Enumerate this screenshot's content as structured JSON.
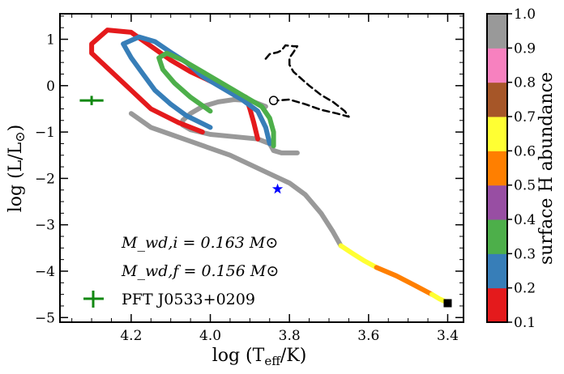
{
  "chart_data": {
    "type": "scatter",
    "xlabel_main": "log (T",
    "xlabel_sub": "eff",
    "xlabel_end": "/K)",
    "ylabel_main": "log (L/L",
    "ylabel_sun": "⊙",
    "ylabel_end": ")",
    "xlim": [
      4.38,
      3.36
    ],
    "ylim": [
      -5.1,
      1.55
    ],
    "xticks": [
      4.2,
      4.0,
      3.8,
      3.6,
      3.4
    ],
    "yticks": [
      1,
      0,
      -1,
      -2,
      -3,
      -4,
      -5
    ],
    "colorbar": {
      "label": "surface H abundance",
      "ticks": [
        0.1,
        0.2,
        0.3,
        0.4,
        0.5,
        0.6,
        0.7,
        0.8,
        0.9,
        1.0
      ],
      "bins": [
        {
          "from": 0.1,
          "to": 0.2,
          "color": "#e41a1c"
        },
        {
          "from": 0.2,
          "to": 0.3,
          "color": "#377eb8"
        },
        {
          "from": 0.3,
          "to": 0.4,
          "color": "#4daf4a"
        },
        {
          "from": 0.4,
          "to": 0.5,
          "color": "#984ea3"
        },
        {
          "from": 0.5,
          "to": 0.6,
          "color": "#ff7f00"
        },
        {
          "from": 0.6,
          "to": 0.7,
          "color": "#ffff33"
        },
        {
          "from": 0.7,
          "to": 0.8,
          "color": "#a65628"
        },
        {
          "from": 0.8,
          "to": 0.9,
          "color": "#f781bf"
        },
        {
          "from": 0.9,
          "to": 1.0,
          "color": "#999999"
        }
      ]
    },
    "annotations": {
      "mass_initial": "M_wd,i = 0.163 M⊙",
      "mass_final": "M_wd,f = 0.156 M⊙",
      "legend_label": "PFT J0533+0209"
    },
    "series": [
      {
        "name": "pre-WD track (dashed)",
        "style": "dashed",
        "color": "#000000",
        "points": [
          [
            3.86,
            0.58
          ],
          [
            3.85,
            0.68
          ],
          [
            3.83,
            0.72
          ],
          [
            3.82,
            0.76
          ],
          [
            3.81,
            0.87
          ],
          [
            3.79,
            0.85
          ],
          [
            3.78,
            0.85
          ],
          [
            3.79,
            0.72
          ],
          [
            3.8,
            0.6
          ],
          [
            3.8,
            0.45
          ],
          [
            3.79,
            0.3
          ],
          [
            3.77,
            0.15
          ],
          [
            3.75,
            0.0
          ],
          [
            3.72,
            -0.2
          ],
          [
            3.69,
            -0.35
          ],
          [
            3.66,
            -0.55
          ],
          [
            3.65,
            -0.67
          ],
          [
            3.68,
            -0.6
          ],
          [
            3.72,
            -0.52
          ],
          [
            3.76,
            -0.4
          ],
          [
            3.8,
            -0.3
          ],
          [
            3.83,
            -0.32
          ]
        ]
      },
      {
        "name": "flash loop 1 (Teff ~3.88)",
        "color": "#999999",
        "points": [
          [
            3.86,
            -0.45
          ],
          [
            3.9,
            -0.32
          ],
          [
            3.94,
            -0.3
          ],
          [
            3.98,
            -0.35
          ],
          [
            4.02,
            -0.45
          ],
          [
            4.05,
            -0.6
          ],
          [
            4.07,
            -0.75
          ],
          [
            4.07,
            -0.85
          ],
          [
            4.05,
            -0.95
          ],
          [
            4.0,
            -1.05
          ],
          [
            3.94,
            -1.1
          ],
          [
            3.88,
            -1.15
          ],
          [
            3.85,
            -1.25
          ],
          [
            3.84,
            -1.4
          ],
          [
            3.82,
            -1.45
          ],
          [
            3.78,
            -1.45
          ]
        ]
      },
      {
        "name": "flash loop 2 (Teff ~4.1)",
        "color": "#e41a1c",
        "points": [
          [
            3.88,
            -1.15
          ],
          [
            3.89,
            -0.8
          ],
          [
            3.9,
            -0.5
          ],
          [
            3.91,
            -0.25
          ],
          [
            3.95,
            -0.1
          ],
          [
            4.0,
            0.1
          ],
          [
            4.05,
            0.3
          ],
          [
            4.1,
            0.55
          ],
          [
            4.15,
            0.85
          ],
          [
            4.2,
            1.15
          ],
          [
            4.26,
            1.2
          ],
          [
            4.3,
            0.9
          ],
          [
            4.3,
            0.7
          ],
          [
            4.25,
            0.3
          ],
          [
            4.2,
            -0.1
          ],
          [
            4.15,
            -0.5
          ],
          [
            4.08,
            -0.8
          ],
          [
            4.02,
            -1.0
          ]
        ]
      },
      {
        "name": "blue loop",
        "color": "#377eb8",
        "points": [
          [
            3.85,
            -1.25
          ],
          [
            3.86,
            -0.9
          ],
          [
            3.88,
            -0.55
          ],
          [
            3.92,
            -0.3
          ],
          [
            3.97,
            -0.05
          ],
          [
            4.02,
            0.2
          ],
          [
            4.06,
            0.5
          ],
          [
            4.1,
            0.72
          ],
          [
            4.14,
            0.95
          ],
          [
            4.18,
            1.05
          ],
          [
            4.22,
            0.9
          ],
          [
            4.2,
            0.6
          ],
          [
            4.17,
            0.25
          ],
          [
            4.14,
            -0.1
          ],
          [
            4.1,
            -0.4
          ],
          [
            4.06,
            -0.65
          ],
          [
            4.0,
            -0.9
          ]
        ]
      },
      {
        "name": "green loop",
        "color": "#4daf4a",
        "points": [
          [
            3.84,
            -1.3
          ],
          [
            3.84,
            -1.0
          ],
          [
            3.85,
            -0.7
          ],
          [
            3.87,
            -0.45
          ],
          [
            3.92,
            -0.2
          ],
          [
            3.97,
            0.05
          ],
          [
            4.02,
            0.3
          ],
          [
            4.07,
            0.55
          ],
          [
            4.11,
            0.7
          ],
          [
            4.13,
            0.6
          ],
          [
            4.12,
            0.35
          ],
          [
            4.09,
            0.05
          ],
          [
            4.05,
            -0.25
          ],
          [
            4.0,
            -0.55
          ]
        ]
      },
      {
        "name": "WD cooling track",
        "color": "#999999",
        "points": [
          [
            4.2,
            -0.6
          ],
          [
            4.15,
            -0.9
          ],
          [
            4.1,
            -1.05
          ],
          [
            4.05,
            -1.2
          ],
          [
            4.0,
            -1.35
          ],
          [
            3.95,
            -1.5
          ],
          [
            3.9,
            -1.7
          ],
          [
            3.85,
            -1.9
          ],
          [
            3.8,
            -2.1
          ],
          [
            3.76,
            -2.35
          ],
          [
            3.72,
            -2.75
          ],
          [
            3.69,
            -3.15
          ],
          [
            3.67,
            -3.45
          ]
        ]
      },
      {
        "name": "WD cooling track (low H)",
        "color": "#ffff33",
        "points": [
          [
            3.67,
            -3.45
          ],
          [
            3.64,
            -3.62
          ],
          [
            3.61,
            -3.78
          ],
          [
            3.58,
            -3.92
          ]
        ]
      },
      {
        "name": "WD cooling track (final)",
        "color": "#ff7f00",
        "points": [
          [
            3.58,
            -3.92
          ],
          [
            3.53,
            -4.1
          ],
          [
            3.48,
            -4.32
          ],
          [
            3.44,
            -4.5
          ]
        ]
      },
      {
        "name": "WD cooling track (end)",
        "color": "#ffff33",
        "points": [
          [
            3.44,
            -4.5
          ],
          [
            3.42,
            -4.6
          ],
          [
            3.4,
            -4.68
          ]
        ]
      }
    ],
    "markers": [
      {
        "name": "observed-star",
        "x": 3.83,
        "y": -2.23,
        "shape": "star",
        "color": "#0000ff"
      },
      {
        "name": "final-point",
        "x": 3.4,
        "y": -4.69,
        "shape": "square",
        "color": "#000000"
      },
      {
        "name": "start-circle",
        "x": 3.84,
        "y": -0.32,
        "shape": "circle",
        "color": "#000000"
      },
      {
        "name": "pft-errorbar",
        "x": 4.3,
        "y": -0.32,
        "shape": "errorbar",
        "color": "#118811",
        "xerr": 0.03,
        "yerr": 0.1
      }
    ]
  }
}
